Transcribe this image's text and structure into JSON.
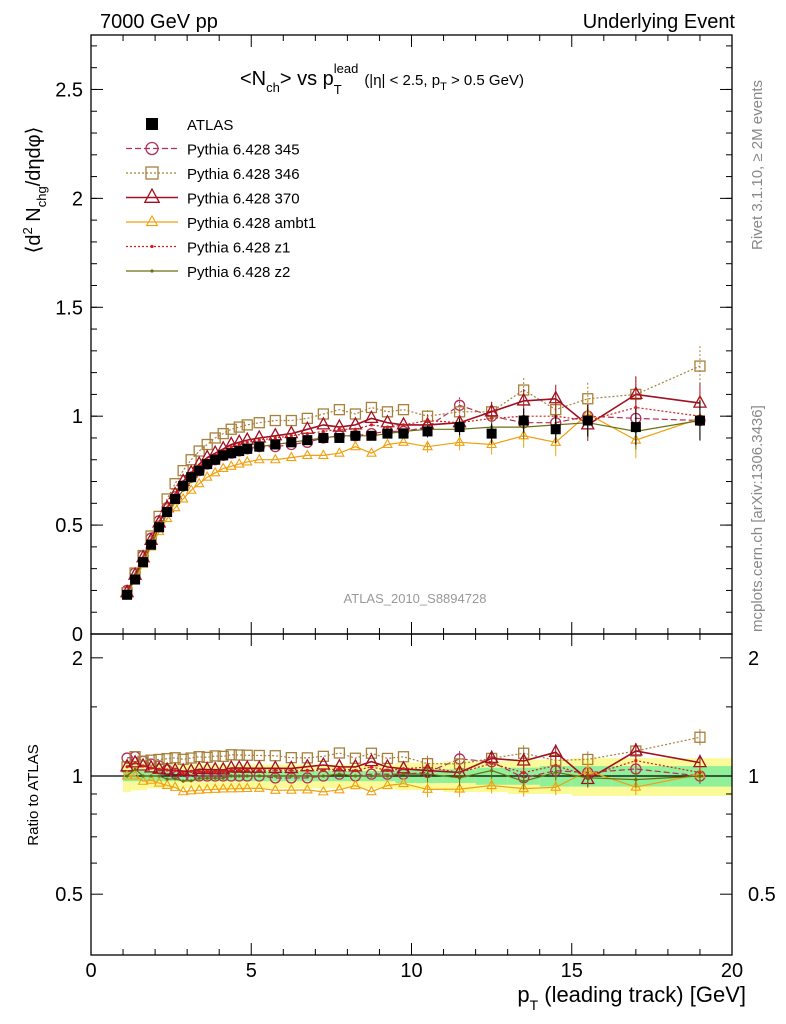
{
  "header": {
    "left": "7000 GeV pp",
    "right": "Underlying Event"
  },
  "plot_title": {
    "main": "<N",
    "main_sub": "ch",
    "main_mid": "> vs p",
    "main_sup": "lead",
    "main_sub2": "T",
    "cut": "(|η| < 2.5, p",
    "cut_sub": "T",
    "cut_end": " > 0.5 GeV)"
  },
  "side_labels": {
    "rivet": "Rivet 3.1.10, ≥ 2M events",
    "mcplots": "mcplots.cern.ch [arXiv:1306.3436]"
  },
  "watermark": "ATLAS_2010_S8894728",
  "colors": {
    "ATLAS": "#000000",
    "p345": "#b0305a",
    "p346": "#a8803a",
    "p370": "#a01020",
    "ambt1": "#f0a010",
    "z1": "#d02020",
    "z2": "#6a7010",
    "band_green": "#90f098",
    "band_yellow": "#fafa98"
  },
  "chart_data": [
    {
      "type": "line",
      "panel": "main",
      "ylabel_parts": [
        "⟨d",
        "2",
        " N",
        "chg",
        "/dηdφ⟩"
      ],
      "xlim": [
        0,
        20
      ],
      "ylim": [
        0,
        2.75
      ],
      "yticks": [
        0,
        0.5,
        1,
        1.5,
        2,
        2.5
      ],
      "ytick_labels": [
        "0",
        "0.5",
        "1",
        "1.5",
        "2",
        "2.5"
      ],
      "x": [
        1.125,
        1.375,
        1.625,
        1.875,
        2.125,
        2.375,
        2.625,
        2.875,
        3.125,
        3.375,
        3.625,
        3.875,
        4.125,
        4.375,
        4.625,
        4.875,
        5.25,
        5.75,
        6.25,
        6.75,
        7.25,
        7.75,
        8.25,
        8.75,
        9.25,
        9.75,
        10.5,
        11.5,
        12.5,
        13.5,
        14.5,
        15.5,
        17.0,
        19.0
      ],
      "series": [
        {
          "name": "ATLAS",
          "style": "data",
          "values": [
            0.18,
            0.25,
            0.33,
            0.41,
            0.49,
            0.56,
            0.62,
            0.68,
            0.72,
            0.75,
            0.78,
            0.8,
            0.82,
            0.83,
            0.84,
            0.85,
            0.86,
            0.87,
            0.88,
            0.89,
            0.9,
            0.9,
            0.91,
            0.91,
            0.92,
            0.92,
            0.93,
            0.95,
            0.92,
            0.98,
            0.94,
            0.98,
            0.95,
            0.98
          ]
        },
        {
          "name": "Pythia 6.428 345",
          "style": "circle-dashed",
          "values": [
            0.2,
            0.28,
            0.36,
            0.44,
            0.52,
            0.58,
            0.63,
            0.68,
            0.72,
            0.75,
            0.78,
            0.8,
            0.82,
            0.83,
            0.84,
            0.85,
            0.86,
            0.86,
            0.87,
            0.88,
            0.9,
            0.91,
            0.91,
            0.92,
            0.93,
            0.93,
            0.95,
            1.05,
            1.0,
            0.97,
            0.97,
            1.0,
            0.99,
            0.98
          ]
        },
        {
          "name": "Pythia 6.428 346",
          "style": "square-dotted",
          "values": [
            0.19,
            0.28,
            0.36,
            0.45,
            0.54,
            0.62,
            0.69,
            0.75,
            0.8,
            0.84,
            0.87,
            0.9,
            0.92,
            0.94,
            0.95,
            0.96,
            0.97,
            0.98,
            0.98,
            0.99,
            1.01,
            1.03,
            1.01,
            1.04,
            1.02,
            1.03,
            1.0,
            1.02,
            1.02,
            1.12,
            1.03,
            1.08,
            1.1,
            1.23
          ]
        },
        {
          "name": "Pythia 6.428 370",
          "style": "triangle-solid",
          "values": [
            0.19,
            0.27,
            0.35,
            0.43,
            0.51,
            0.58,
            0.64,
            0.7,
            0.74,
            0.78,
            0.81,
            0.83,
            0.85,
            0.87,
            0.88,
            0.89,
            0.9,
            0.91,
            0.92,
            0.94,
            0.96,
            0.95,
            0.96,
            0.99,
            0.97,
            0.96,
            0.96,
            0.97,
            1.02,
            1.07,
            1.08,
            0.96,
            1.1,
            1.06
          ]
        },
        {
          "name": "Pythia 6.428 ambt1",
          "style": "triangle-solid-thin",
          "values": [
            0.18,
            0.25,
            0.32,
            0.4,
            0.47,
            0.53,
            0.58,
            0.62,
            0.66,
            0.69,
            0.72,
            0.74,
            0.76,
            0.77,
            0.78,
            0.79,
            0.8,
            0.8,
            0.81,
            0.82,
            0.82,
            0.83,
            0.86,
            0.83,
            0.87,
            0.88,
            0.86,
            0.88,
            0.87,
            0.91,
            0.88,
            1.01,
            0.89,
            0.99
          ]
        },
        {
          "name": "Pythia 6.428 z1",
          "style": "dot-dotted",
          "values": [
            0.19,
            0.27,
            0.35,
            0.43,
            0.51,
            0.58,
            0.64,
            0.69,
            0.74,
            0.77,
            0.8,
            0.82,
            0.84,
            0.86,
            0.87,
            0.88,
            0.89,
            0.9,
            0.91,
            0.92,
            0.93,
            0.94,
            0.94,
            0.96,
            0.95,
            0.96,
            0.98,
            0.97,
            0.99,
            1.0,
            1.0,
            0.98,
            1.04,
            1.0
          ]
        },
        {
          "name": "Pythia 6.428 z2",
          "style": "dot-solid",
          "values": [
            0.18,
            0.26,
            0.33,
            0.41,
            0.49,
            0.55,
            0.61,
            0.66,
            0.7,
            0.74,
            0.77,
            0.79,
            0.81,
            0.83,
            0.84,
            0.85,
            0.86,
            0.87,
            0.88,
            0.89,
            0.9,
            0.91,
            0.91,
            0.91,
            0.92,
            0.93,
            0.94,
            0.94,
            0.95,
            0.95,
            0.96,
            0.97,
            0.93,
            0.98
          ]
        }
      ]
    },
    {
      "type": "line",
      "panel": "ratio",
      "ylabel": "Ratio to ATLAS",
      "xlabel_parts": [
        "p",
        "T",
        " (leading track) [GeV]"
      ],
      "xlim": [
        0,
        20
      ],
      "ylim": [
        0.35,
        2.3
      ],
      "xticks": [
        0,
        5,
        10,
        15,
        20
      ],
      "xtick_labels": [
        "0",
        "5",
        "10",
        "15",
        "20"
      ],
      "yticks": [
        0.5,
        1,
        2
      ],
      "ytick_labels": [
        "0.5",
        "1",
        "2"
      ],
      "bands": {
        "green_halfwidth": [
          0.03,
          0.03,
          0.03,
          0.03,
          0.03,
          0.03,
          0.03,
          0.03,
          0.03,
          0.03,
          0.03,
          0.03,
          0.03,
          0.03,
          0.03,
          0.03,
          0.03,
          0.03,
          0.03,
          0.03,
          0.03,
          0.03,
          0.03,
          0.03,
          0.03,
          0.04,
          0.04,
          0.04,
          0.05,
          0.05,
          0.06,
          0.06,
          0.06,
          0.06
        ],
        "yellow_halfwidth": [
          0.09,
          0.08,
          0.08,
          0.07,
          0.07,
          0.07,
          0.07,
          0.07,
          0.07,
          0.07,
          0.07,
          0.07,
          0.07,
          0.07,
          0.07,
          0.07,
          0.07,
          0.07,
          0.07,
          0.07,
          0.07,
          0.07,
          0.07,
          0.07,
          0.07,
          0.08,
          0.08,
          0.09,
          0.09,
          0.1,
          0.1,
          0.11,
          0.11,
          0.11
        ]
      }
    }
  ]
}
